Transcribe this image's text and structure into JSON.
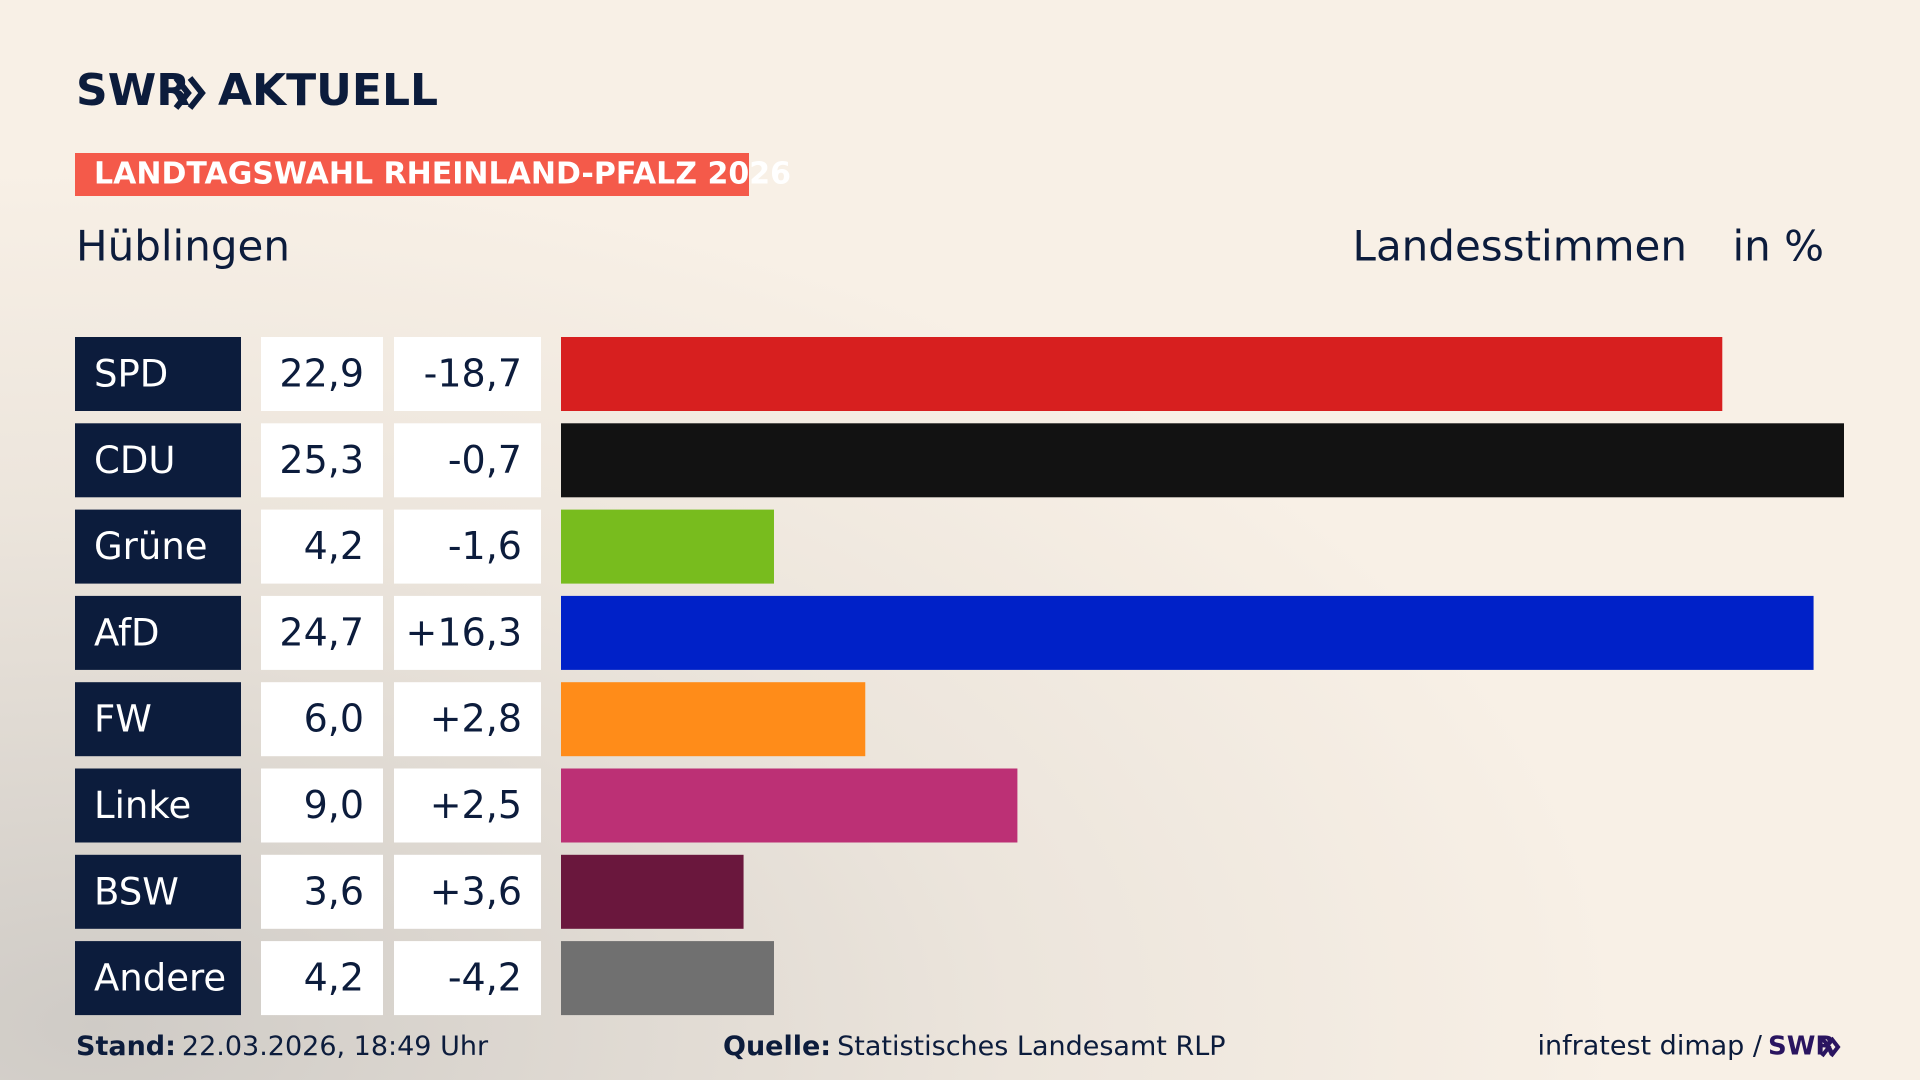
{
  "chart_data": {
    "type": "bar",
    "orientation": "horizontal",
    "brand": "SWR",
    "brand_suffix": "AKTUELL",
    "title": "LANDTAGSWAHL RHEINLAND-PFALZ 2026",
    "subtitle": "Hüblingen",
    "value_label": "Landesstimmen",
    "unit_label": "in %",
    "categories": [
      "SPD",
      "CDU",
      "Grüne",
      "AfD",
      "FW",
      "Linke",
      "BSW",
      "Andere"
    ],
    "values": [
      22.9,
      25.3,
      4.2,
      24.7,
      6.0,
      9.0,
      3.6,
      4.2
    ],
    "value_labels": [
      "22,9",
      "25,3",
      "4,2",
      "24,7",
      "6,0",
      "9,0",
      "3,6",
      "4,2"
    ],
    "changes": [
      -18.7,
      -0.7,
      -1.6,
      16.3,
      2.8,
      2.5,
      3.6,
      -4.2
    ],
    "change_labels": [
      "-18,7",
      "-0,7",
      "-1,6",
      "+16,3",
      "+2,8",
      "+2,5",
      "+3,6",
      "-4,2"
    ],
    "colors": [
      "#d71f1f",
      "#121212",
      "#78bc1e",
      "#0021c8",
      "#ff8c19",
      "#bc3075",
      "#6a173d",
      "#707070"
    ],
    "footer": {
      "stand_label": "Stand:",
      "stand": "22.03.2026, 18:49 Uhr",
      "source_label": "Quelle:",
      "source": "Statistisches Landesamt RLP",
      "credit": "infratest dimap /",
      "credit_brand": "SWR"
    }
  }
}
